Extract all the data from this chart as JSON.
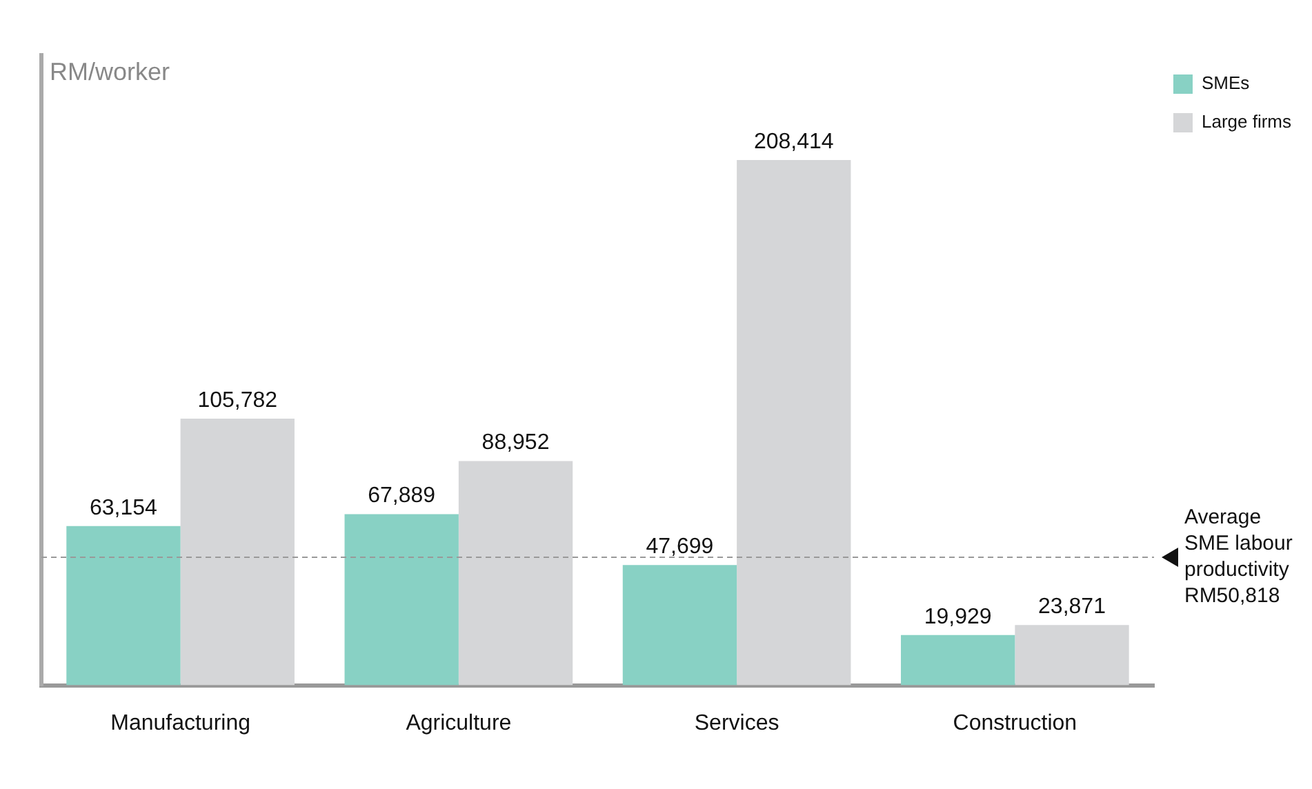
{
  "chart_data": {
    "type": "bar",
    "ylabel": "RM/worker",
    "categories": [
      "Manufacturing",
      "Agriculture",
      "Services",
      "Construction"
    ],
    "series": [
      {
        "name": "SMEs",
        "color": "#88d1c4",
        "values": [
          63154,
          67889,
          47699,
          19929
        ],
        "value_labels": [
          "63,154",
          "67,889",
          "47,699",
          "19,929"
        ]
      },
      {
        "name": "Large firms",
        "color": "#d5d6d8",
        "values": [
          105782,
          88952,
          208414,
          23871
        ],
        "value_labels": [
          "105,782",
          "88,952",
          "208,414",
          "23,871"
        ]
      }
    ],
    "tick_labels": "x",
    "grid": false,
    "legend": "top right",
    "ref_lines": [
      {
        "axis": "y",
        "value": 50818,
        "label": "Average SME labour productivity RM50,818",
        "color": "#999999",
        "line_style": "dashed"
      }
    ]
  }
}
